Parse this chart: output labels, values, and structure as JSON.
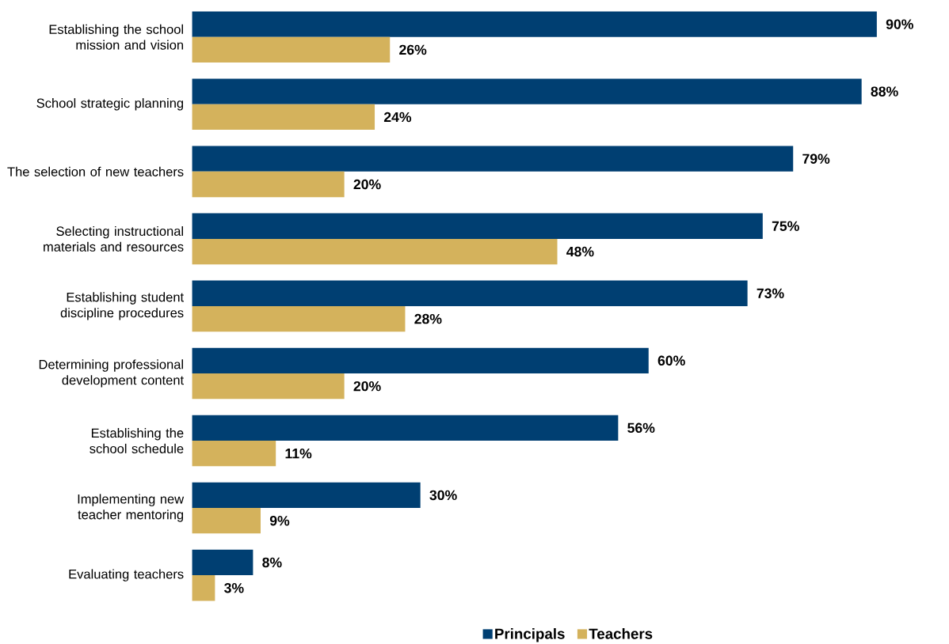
{
  "chart_data": {
    "type": "bar",
    "orientation": "horizontal",
    "legend": "bottom",
    "tick_labels": "y",
    "grid": false,
    "categories": [
      "Establishing the school mission and vision",
      "School strategic planning",
      "The selection of new teachers",
      "Selecting instructional materials and resources",
      "Establishing student discipline procedures",
      "Determining professional development content",
      "Establishing the school schedule",
      "Implementing new teacher mentoring",
      "Evaluating teachers"
    ],
    "series": [
      {
        "name": "Principals",
        "color": "#003f72",
        "values": [
          90,
          88,
          79,
          75,
          73,
          60,
          56,
          30,
          8
        ],
        "value_labels": [
          "90%",
          "88%",
          "79%",
          "75%",
          "73%",
          "60%",
          "56%",
          "30%",
          "8%"
        ]
      },
      {
        "name": "Teachers",
        "color": "#d4b25c",
        "values": [
          26,
          24,
          20,
          48,
          28,
          20,
          11,
          9,
          3
        ],
        "value_labels": [
          "26%",
          "24%",
          "20%",
          "48%",
          "28%",
          "20%",
          "11%",
          "9%",
          "3%"
        ]
      }
    ]
  }
}
